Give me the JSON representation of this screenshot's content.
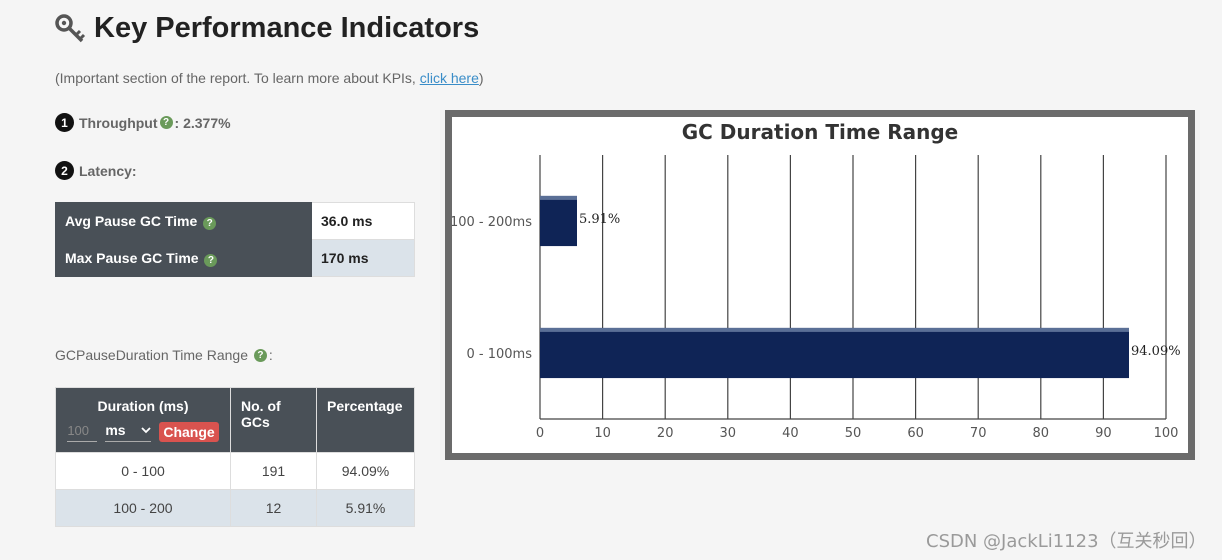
{
  "header": {
    "title": "Key Performance Indicators",
    "subtitle_prefix": "(Important section of the report. To learn more about KPIs, ",
    "subtitle_link": "click here",
    "subtitle_suffix": ")"
  },
  "kpis": {
    "throughput_num": "1",
    "throughput_label": "Throughput",
    "throughput_value": ": 2.377%",
    "latency_num": "2",
    "latency_label": "Latency:"
  },
  "latency_table": {
    "rows": [
      {
        "label": "Avg Pause GC Time",
        "value": "36.0 ms"
      },
      {
        "label": "Max Pause GC Time",
        "value": "170 ms"
      }
    ]
  },
  "range_section": {
    "label": "GCPauseDuration Time Range",
    "label_suffix": ":",
    "headers": {
      "duration": "Duration (ms)",
      "gcs": "No. of GCs",
      "percentage": "Percentage"
    },
    "duration_input_placeholder": "100",
    "unit_selected": "ms",
    "change_label": "Change",
    "rows": [
      {
        "range": "0 - 100",
        "gcs": "191",
        "percentage": "94.09%"
      },
      {
        "range": "100 - 200",
        "gcs": "12",
        "percentage": "5.91%"
      }
    ]
  },
  "chart_data": {
    "type": "bar",
    "orientation": "horizontal",
    "title": "GC Duration Time Range",
    "categories": [
      "100 - 200ms",
      "0 - 100ms"
    ],
    "values": [
      5.91,
      94.09
    ],
    "data_labels": [
      "5.91%",
      "94.09%"
    ],
    "xlim": [
      0,
      100
    ],
    "xticks": [
      0,
      10,
      20,
      30,
      40,
      50,
      60,
      70,
      80,
      90,
      100
    ],
    "grid": true,
    "bar_color": "#0f2456"
  },
  "watermark": "CSDN @JackLi1123（互关秒回）",
  "icons": {
    "title": "key-icon",
    "help": "question-icon",
    "dropdown": "chevron-down-icon"
  }
}
